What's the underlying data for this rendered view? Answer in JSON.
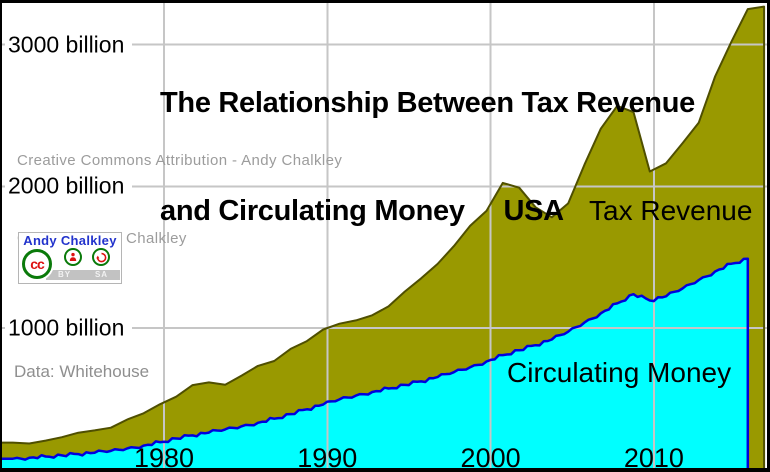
{
  "figure": {
    "title_line1": "The Relationship Between Tax Revenue",
    "title_line2": "and Circulating Money     USA",
    "attribution_line1": "Creative Commons Attribution - Andy Chalkley",
    "attribution_line2": "Graph by Andy Chalkley",
    "data_source": "Data: Whitehouse",
    "area_labels": {
      "tax": "Tax Revenue",
      "money": "Circulating Money"
    },
    "cc_badge": {
      "author": "Andy Chalkley",
      "cc_label": "cc",
      "by_label": "BY",
      "sa_label": "SA"
    }
  },
  "colors": {
    "background": "#ffffff",
    "frame": "#000000",
    "grid": "#c6c6c6",
    "tax_fill": "#999900",
    "tax_edge": "#4f4f00",
    "money_fill": "#00ffff",
    "money_edge": "#0000dd",
    "title": "#000000",
    "attribution": "#9c9c9c",
    "source_note": "#8f8f8f",
    "badge_author_blue": "#2233cc",
    "badge_icon_red": "#dd1111",
    "badge_icon_green": "#0a7a0a",
    "badge_strip_gray": "#c2c2c2"
  },
  "chart_data": {
    "type": "area",
    "title": "The Relationship Between Tax Revenue and Circulating Money  USA",
    "grid": true,
    "legend_position": "labels-inside-areas",
    "xlim": [
      1970,
      2017
    ],
    "ylim": [
      0,
      3300
    ],
    "yticks": [
      {
        "value": 1000,
        "label": "1000 billion"
      },
      {
        "value": 2000,
        "label": "2000 billion"
      },
      {
        "value": 3000,
        "label": "3000 billion"
      }
    ],
    "xticks": [
      {
        "value": 1980,
        "label": "1980"
      },
      {
        "value": 1990,
        "label": "1990"
      },
      {
        "value": 2000,
        "label": "2000"
      },
      {
        "value": 2010,
        "label": "2010"
      }
    ],
    "unit": "billions of US dollars",
    "series": [
      {
        "name": "Tax Revenue",
        "fill": "#999900",
        "edge": "#4f4f00",
        "years": [
          1970,
          1971,
          1972,
          1973,
          1974,
          1975,
          1976,
          1977,
          1978,
          1979,
          1980,
          1981,
          1982,
          1983,
          1984,
          1985,
          1986,
          1987,
          1988,
          1989,
          1990,
          1991,
          1992,
          1993,
          1994,
          1995,
          1996,
          1997,
          1998,
          1999,
          2000,
          2001,
          2002,
          2003,
          2004,
          2005,
          2006,
          2007,
          2008,
          2009,
          2010,
          2011,
          2012,
          2013,
          2014,
          2015,
          2016
        ],
        "values": [
          193,
          187,
          207,
          231,
          263,
          279,
          298,
          356,
          400,
          463,
          517,
          599,
          618,
          601,
          666,
          734,
          769,
          854,
          909,
          991,
          1032,
          1055,
          1091,
          1154,
          1259,
          1352,
          1453,
          1579,
          1722,
          1827,
          2025,
          1991,
          1853,
          1782,
          1880,
          2154,
          2407,
          2568,
          2524,
          2105,
          2163,
          2304,
          2450,
          2775,
          3021,
          3250,
          3268
        ]
      },
      {
        "name": "Circulating Money",
        "fill": "#00ffff",
        "edge": "#0000dd",
        "years": [
          1970,
          1971,
          1972,
          1973,
          1974,
          1975,
          1976,
          1977,
          1978,
          1979,
          1980,
          1981,
          1982,
          1983,
          1984,
          1985,
          1986,
          1987,
          1988,
          1989,
          1990,
          1991,
          1992,
          1993,
          1994,
          1995,
          1996,
          1997,
          1998,
          1999,
          2000,
          2001,
          2002,
          2003,
          2004,
          2005,
          2006,
          2007,
          2008,
          2009,
          2010,
          2011,
          2012,
          2013,
          2014,
          2015
        ],
        "values": [
          80,
          87,
          95,
          103,
          112,
          122,
          135,
          152,
          172,
          196,
          222,
          244,
          264,
          286,
          308,
          333,
          362,
          394,
          428,
          462,
          498,
          525,
          550,
          575,
          600,
          625,
          655,
          690,
          725,
          765,
          810,
          845,
          880,
          920,
          975,
          1040,
          1105,
          1175,
          1240,
          1195,
          1225,
          1280,
          1340,
          1400,
          1455,
          1490
        ]
      }
    ]
  }
}
